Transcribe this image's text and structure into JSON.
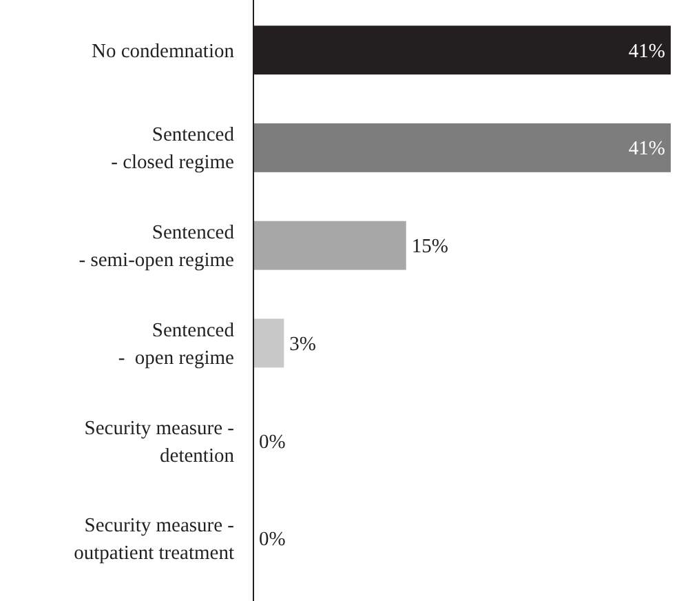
{
  "chart_data": {
    "type": "bar",
    "orientation": "horizontal",
    "categories": [
      "No condemnation",
      "Sentenced\n- closed regime",
      "Sentenced\n- semi-open regime",
      "Sentenced\n-  open regime",
      "Security measure -\ndetention",
      "Security measure -\noutpatient treatment"
    ],
    "values": [
      41,
      41,
      15,
      3,
      0,
      0
    ],
    "colors": [
      "#231f20",
      "#7d7d7d",
      "#a7a7a7",
      "#c8c8c8",
      "#c8c8c8",
      "#c8c8c8"
    ],
    "value_labels": [
      "41%",
      "41%",
      "15%",
      "3%",
      "0%",
      "0%"
    ]
  }
}
